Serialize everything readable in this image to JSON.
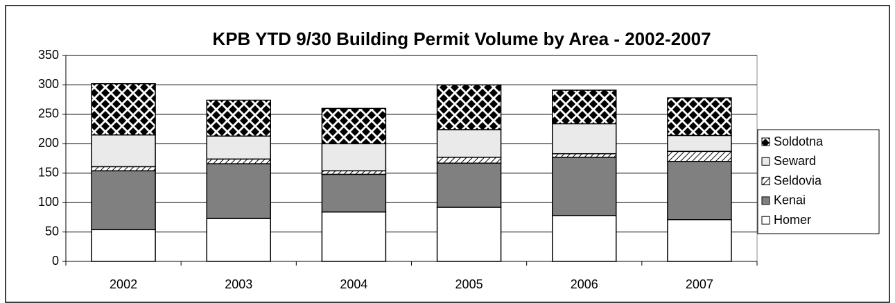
{
  "chart_data": {
    "type": "stacked_bar",
    "title": "KPB YTD 9/30 Building Permit Volume by Area - 2002-2007",
    "categories": [
      "2002",
      "2003",
      "2004",
      "2005",
      "2006",
      "2007"
    ],
    "series": [
      {
        "name": "Homer",
        "color": "#ffffff",
        "values": [
          54,
          73,
          84,
          92,
          78,
          71
        ]
      },
      {
        "name": "Kenai",
        "color": "#808080",
        "values": [
          100,
          93,
          64,
          75,
          99,
          99
        ]
      },
      {
        "name": "Seldovia",
        "color": "#ffffff",
        "pattern": "diagonal",
        "values": [
          7,
          8,
          6,
          10,
          6,
          17
        ]
      },
      {
        "name": "Seward",
        "color": "#eaeaea",
        "values": [
          54,
          39,
          46,
          47,
          51,
          27
        ]
      },
      {
        "name": "Soldotna",
        "color": "#000000",
        "pattern": "checker",
        "values": [
          87,
          61,
          60,
          76,
          57,
          64
        ]
      }
    ],
    "ylim": [
      0,
      350
    ],
    "yticks": [
      0,
      50,
      100,
      150,
      200,
      250,
      300,
      350
    ],
    "grid": true,
    "legend": "right"
  }
}
